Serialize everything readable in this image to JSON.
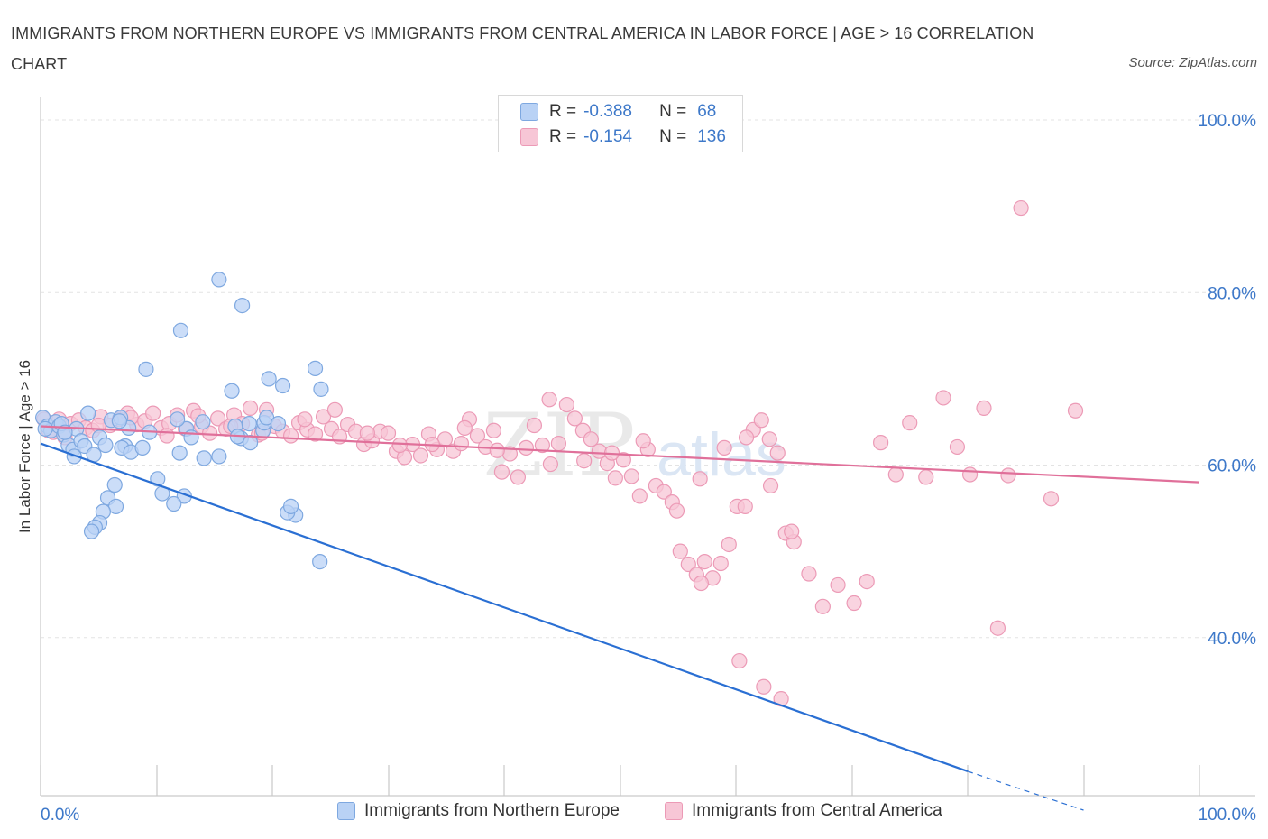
{
  "title": "IMMIGRANTS FROM NORTHERN EUROPE VS IMMIGRANTS FROM CENTRAL AMERICA IN LABOR FORCE | AGE > 16 CORRELATION CHART",
  "source": "Source: ZipAtlas.com",
  "watermark": {
    "zip": "ZIP",
    "atlas": "atlas"
  },
  "legend": {
    "r_label": "R =",
    "n_label": "N =",
    "series": [
      {
        "r": "-0.388",
        "n": "68"
      },
      {
        "r": "-0.154",
        "n": "136"
      }
    ]
  },
  "colors": {
    "blue_fill": "#b9d2f5",
    "blue_stroke": "#7ea8e0",
    "blue_line": "#2a6fd3",
    "pink_fill": "#f7c6d6",
    "pink_stroke": "#ec9ab6",
    "pink_line": "#e0709a",
    "tick_label": "#3d78c9",
    "grid": "#e3e3e3"
  },
  "chart_data": {
    "type": "scatter",
    "title": "IMMIGRANTS FROM NORTHERN EUROPE VS IMMIGRANTS FROM CENTRAL AMERICA IN LABOR FORCE | AGE > 16 CORRELATION CHART",
    "xlabel": "",
    "ylabel": "In Labor Force | Age > 16",
    "xlim": [
      0,
      100
    ],
    "ylim": [
      20,
      100
    ],
    "x_tick_labels": [
      "0.0%",
      "100.0%"
    ],
    "y_ticks": [
      40,
      60,
      80,
      100
    ],
    "y_tick_labels": [
      "40.0%",
      "60.0%",
      "80.0%",
      "100.0%"
    ],
    "series": [
      {
        "name": "Immigrants from Northern Europe",
        "color": "#7ea8e0",
        "R": -0.388,
        "N": 68,
        "trend": {
          "x": [
            0,
            80
          ],
          "y": [
            62.5,
            24.5
          ],
          "dashed_to": [
            90,
            20.0
          ]
        },
        "points": [
          [
            0.2,
            65.5
          ],
          [
            0.6,
            64.5
          ],
          [
            0.9,
            64
          ],
          [
            1.3,
            65
          ],
          [
            1.6,
            64.5
          ],
          [
            2.0,
            63.5
          ],
          [
            2.4,
            62.3
          ],
          [
            2.8,
            61.8
          ],
          [
            1.8,
            64.8
          ],
          [
            3.1,
            64.2
          ],
          [
            3.5,
            62.8
          ],
          [
            3.8,
            62.2
          ],
          [
            4.1,
            66.0
          ],
          [
            4.6,
            61.2
          ],
          [
            2.1,
            63.8
          ],
          [
            2.9,
            61.0
          ],
          [
            0.4,
            64.2
          ],
          [
            5.1,
            63.2
          ],
          [
            5.6,
            62.3
          ],
          [
            6.1,
            65.2
          ],
          [
            7.3,
            62.2
          ],
          [
            7.6,
            64.3
          ],
          [
            12.6,
            64.2
          ],
          [
            14.0,
            65.0
          ],
          [
            11.8,
            65.3
          ],
          [
            12.0,
            61.4
          ],
          [
            16.8,
            64.5
          ],
          [
            17.3,
            63.1
          ],
          [
            15.4,
            61.0
          ],
          [
            19.2,
            64.0
          ],
          [
            7.0,
            62.0
          ],
          [
            7.8,
            61.5
          ],
          [
            8.8,
            62.0
          ],
          [
            9.4,
            63.8
          ],
          [
            10.1,
            58.4
          ],
          [
            10.5,
            56.7
          ],
          [
            12.4,
            56.4
          ],
          [
            13.0,
            63.2
          ],
          [
            14.1,
            60.8
          ],
          [
            11.5,
            55.5
          ],
          [
            6.9,
            65.5
          ],
          [
            6.4,
            57.7
          ],
          [
            5.8,
            56.2
          ],
          [
            6.8,
            65.1
          ],
          [
            6.5,
            55.2
          ],
          [
            5.4,
            54.6
          ],
          [
            5.1,
            53.3
          ],
          [
            4.7,
            52.8
          ],
          [
            4.4,
            52.3
          ],
          [
            17.0,
            63.3
          ],
          [
            18.1,
            62.6
          ],
          [
            19.3,
            64.9
          ],
          [
            18.0,
            64.8
          ],
          [
            19.5,
            65.5
          ],
          [
            20.5,
            64.8
          ],
          [
            24.1,
            48.8
          ],
          [
            22.0,
            54.2
          ],
          [
            21.3,
            54.5
          ],
          [
            21.6,
            55.2
          ],
          [
            20.9,
            69.2
          ],
          [
            24.2,
            68.8
          ],
          [
            16.5,
            68.6
          ],
          [
            19.7,
            70.0
          ],
          [
            23.7,
            71.2
          ],
          [
            9.1,
            71.1
          ],
          [
            12.1,
            75.6
          ],
          [
            17.4,
            78.5
          ],
          [
            15.4,
            81.5
          ]
        ]
      },
      {
        "name": "Immigrants from Central America",
        "color": "#ec9ab6",
        "R": -0.154,
        "N": 136,
        "trend": {
          "x": [
            0,
            100
          ],
          "y": [
            64.5,
            58.0
          ]
        },
        "points": [
          [
            0.3,
            65.3
          ],
          [
            0.7,
            64.0
          ],
          [
            1.1,
            63.8
          ],
          [
            1.6,
            65.3
          ],
          [
            2.1,
            63.2
          ],
          [
            2.6,
            64.8
          ],
          [
            3.3,
            65.2
          ],
          [
            3.9,
            64.3
          ],
          [
            4.5,
            64.0
          ],
          [
            5.2,
            65.6
          ],
          [
            6.0,
            64.6
          ],
          [
            6.8,
            65.3
          ],
          [
            7.5,
            66.0
          ],
          [
            8.3,
            64.7
          ],
          [
            9.0,
            65.1
          ],
          [
            9.7,
            66.0
          ],
          [
            10.4,
            64.3
          ],
          [
            11.1,
            64.8
          ],
          [
            11.8,
            65.8
          ],
          [
            12.5,
            64.2
          ],
          [
            13.2,
            66.3
          ],
          [
            13.9,
            64.5
          ],
          [
            14.6,
            63.7
          ],
          [
            15.3,
            65.4
          ],
          [
            16.0,
            64.2
          ],
          [
            16.7,
            65.8
          ],
          [
            17.4,
            64.8
          ],
          [
            18.1,
            66.6
          ],
          [
            18.8,
            63.5
          ],
          [
            19.5,
            66.4
          ],
          [
            20.2,
            64.5
          ],
          [
            20.9,
            63.9
          ],
          [
            21.6,
            63.4
          ],
          [
            22.3,
            64.9
          ],
          [
            23.0,
            64.1
          ],
          [
            23.7,
            63.6
          ],
          [
            24.4,
            65.6
          ],
          [
            25.1,
            64.2
          ],
          [
            25.8,
            63.3
          ],
          [
            26.5,
            64.7
          ],
          [
            27.2,
            63.9
          ],
          [
            27.9,
            62.4
          ],
          [
            28.6,
            62.8
          ],
          [
            29.3,
            63.9
          ],
          [
            30.0,
            63.7
          ],
          [
            30.7,
            61.6
          ],
          [
            31.4,
            60.9
          ],
          [
            32.1,
            62.4
          ],
          [
            32.8,
            61.1
          ],
          [
            33.5,
            63.6
          ],
          [
            34.2,
            61.8
          ],
          [
            34.9,
            63.0
          ],
          [
            35.6,
            61.6
          ],
          [
            36.3,
            62.5
          ],
          [
            37.0,
            65.3
          ],
          [
            37.7,
            63.4
          ],
          [
            38.4,
            62.1
          ],
          [
            39.1,
            64.0
          ],
          [
            39.8,
            59.2
          ],
          [
            40.5,
            61.3
          ],
          [
            41.2,
            58.6
          ],
          [
            41.9,
            62.0
          ],
          [
            42.6,
            64.6
          ],
          [
            43.3,
            62.3
          ],
          [
            44.0,
            60.1
          ],
          [
            44.7,
            62.5
          ],
          [
            45.4,
            67.0
          ],
          [
            46.1,
            65.4
          ],
          [
            46.8,
            64.0
          ],
          [
            47.5,
            63.0
          ],
          [
            48.2,
            61.6
          ],
          [
            48.9,
            60.2
          ],
          [
            49.6,
            58.5
          ],
          [
            50.3,
            60.6
          ],
          [
            51.0,
            58.7
          ],
          [
            51.7,
            56.4
          ],
          [
            52.4,
            61.8
          ],
          [
            53.1,
            57.6
          ],
          [
            53.8,
            56.9
          ],
          [
            54.5,
            55.7
          ],
          [
            55.2,
            50.0
          ],
          [
            55.9,
            48.5
          ],
          [
            56.6,
            47.3
          ],
          [
            57.3,
            48.8
          ],
          [
            58.0,
            46.9
          ],
          [
            58.7,
            48.6
          ],
          [
            59.4,
            50.8
          ],
          [
            60.1,
            55.2
          ],
          [
            60.8,
            55.2
          ],
          [
            61.5,
            64.1
          ],
          [
            62.2,
            65.2
          ],
          [
            62.9,
            63.0
          ],
          [
            63.6,
            61.4
          ],
          [
            64.3,
            52.1
          ],
          [
            65.0,
            51.1
          ],
          [
            5.0,
            64.6
          ],
          [
            7.8,
            65.5
          ],
          [
            10.9,
            63.4
          ],
          [
            13.6,
            65.7
          ],
          [
            16.4,
            64.5
          ],
          [
            19.1,
            63.7
          ],
          [
            22.8,
            65.3
          ],
          [
            25.4,
            66.4
          ],
          [
            28.2,
            63.7
          ],
          [
            31.0,
            62.3
          ],
          [
            33.8,
            62.4
          ],
          [
            36.6,
            64.3
          ],
          [
            39.4,
            61.7
          ],
          [
            43.9,
            67.6
          ],
          [
            46.9,
            60.5
          ],
          [
            49.3,
            61.4
          ],
          [
            52.0,
            62.8
          ],
          [
            54.9,
            54.7
          ],
          [
            56.9,
            58.4
          ],
          [
            59.0,
            62.0
          ],
          [
            60.9,
            63.2
          ],
          [
            63.0,
            57.6
          ],
          [
            64.8,
            52.3
          ],
          [
            57.0,
            46.3
          ],
          [
            60.3,
            37.3
          ],
          [
            62.4,
            34.3
          ],
          [
            63.9,
            32.9
          ],
          [
            66.3,
            47.4
          ],
          [
            67.5,
            43.6
          ],
          [
            68.8,
            46.1
          ],
          [
            70.2,
            44.0
          ],
          [
            71.3,
            46.5
          ],
          [
            72.5,
            62.6
          ],
          [
            73.8,
            58.9
          ],
          [
            75.0,
            64.9
          ],
          [
            76.4,
            58.6
          ],
          [
            77.9,
            67.8
          ],
          [
            79.1,
            62.1
          ],
          [
            80.2,
            58.9
          ],
          [
            81.4,
            66.6
          ],
          [
            82.6,
            41.1
          ],
          [
            83.5,
            58.8
          ],
          [
            84.6,
            89.8
          ],
          [
            87.2,
            56.1
          ],
          [
            89.3,
            66.3
          ]
        ]
      }
    ]
  },
  "bottom_legend": [
    {
      "label": "Immigrants from Northern Europe"
    },
    {
      "label": "Immigrants from Central America"
    }
  ]
}
